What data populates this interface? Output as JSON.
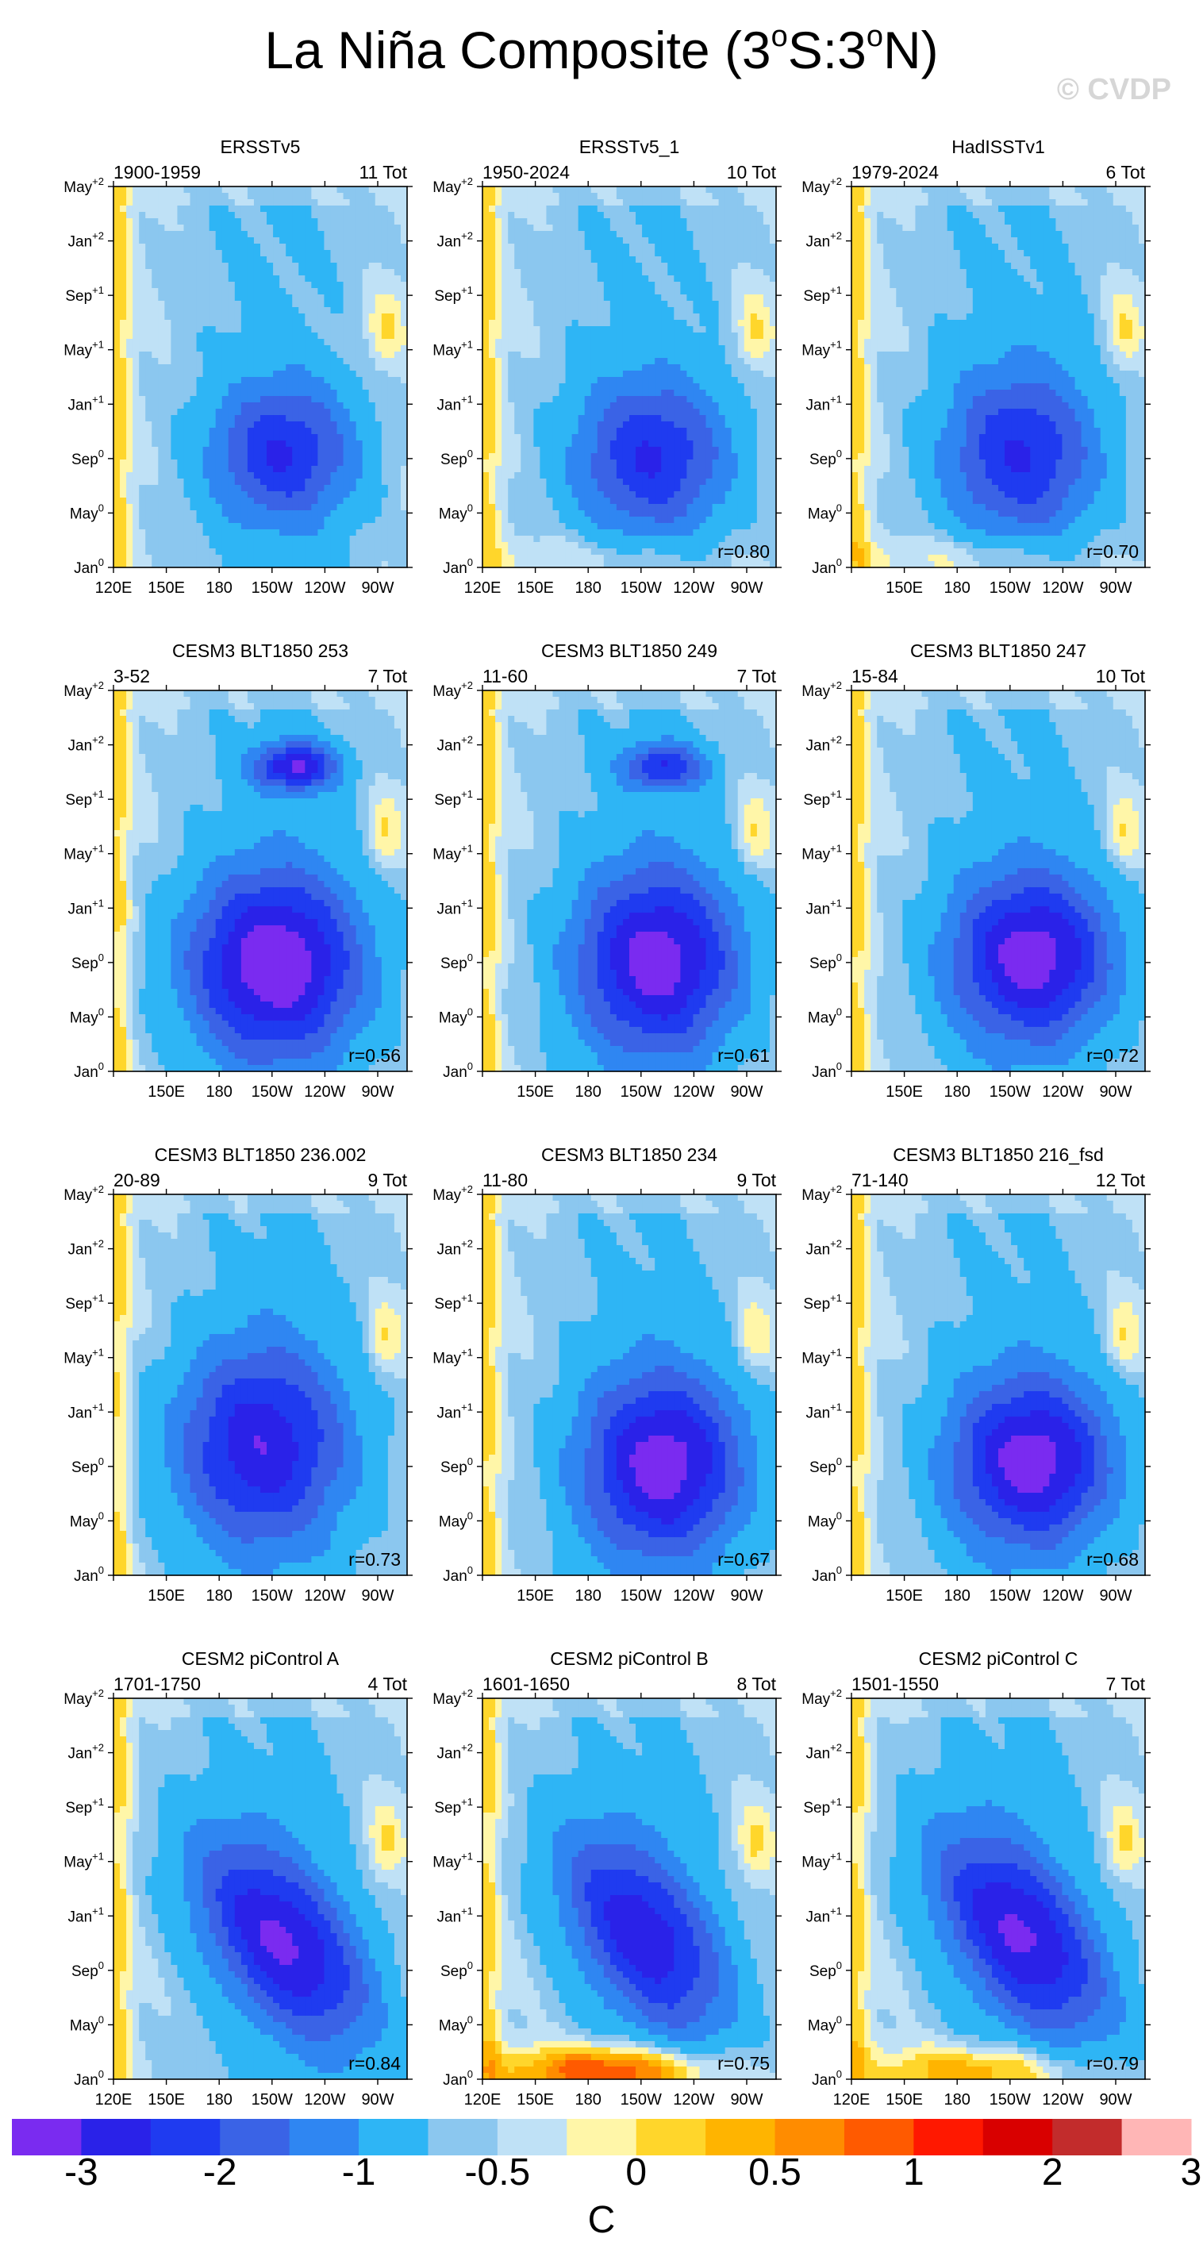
{
  "figure": {
    "title": "La Niña Composite (3",
    "title_deg1": "o",
    "title_mid": "S:3",
    "title_deg2": "o",
    "title_end": "N)",
    "watermark": "© CVDP",
    "colorbar_unit": "C"
  },
  "chart_data": {
    "type": "heatmap",
    "description_units": "SST anomaly composite (C), longitude vs time",
    "x_ticks": [
      "120E",
      "150E",
      "180",
      "150W",
      "120W",
      "90W"
    ],
    "y_ticks": [
      "Jan0",
      "May0",
      "Sep0",
      "Jan+1",
      "May+1",
      "Sep+1",
      "Jan+2",
      "May+2"
    ],
    "y_tick_parts": [
      [
        "Jan",
        "0"
      ],
      [
        "May",
        "0"
      ],
      [
        "Sep",
        "0"
      ],
      [
        "Jan",
        "+1"
      ],
      [
        "May",
        "+1"
      ],
      [
        "Sep",
        "+1"
      ],
      [
        "Jan",
        "+2"
      ],
      [
        "May",
        "+2"
      ]
    ],
    "colorbar": {
      "labels": [
        "-3",
        "-2",
        "-1",
        "-0.5",
        "0",
        "0.5",
        "1",
        "2",
        "3"
      ],
      "colors": [
        "#7a2bf0",
        "#2a22e8",
        "#1f3bf0",
        "#3a63e6",
        "#2f86f2",
        "#2eb5f5",
        "#8bc7ef",
        "#bfe1f6",
        "#fff6a8",
        "#ffd62b",
        "#ffb400",
        "#ff8c00",
        "#ff5a00",
        "#ff1800",
        "#d90000",
        "#c22c2c",
        "#ffb6b6"
      ]
    },
    "panels": [
      {
        "title": "ERSSTv5",
        "period": "1900-1959",
        "count": "11 Tot",
        "r": "",
        "cx": 0.58,
        "cy": 0.3,
        "peak": -2.0,
        "sx": 0.24,
        "sy": 0.18,
        "tilt": 0,
        "warmBand": 0,
        "second": 0,
        "showX0": true
      },
      {
        "title": "ERSSTv5_1",
        "period": "1950-2024",
        "count": "10 Tot",
        "r": "r=0.80",
        "cx": 0.58,
        "cy": 0.29,
        "peak": -2.0,
        "sx": 0.26,
        "sy": 0.2,
        "tilt": 0,
        "warmBand": 0.5,
        "second": 0,
        "showX0": true
      },
      {
        "title": "HadISSTv1",
        "period": "1979-2024",
        "count": "6 Tot",
        "r": "r=0.70",
        "cx": 0.58,
        "cy": 0.3,
        "peak": -2.0,
        "sx": 0.26,
        "sy": 0.22,
        "tilt": 0,
        "warmBand": 0.6,
        "second": 0,
        "showX0": false
      },
      {
        "title": "CESM3 BLT1850 253",
        "period": "3-52",
        "count": "7 Tot",
        "r": "r=0.56",
        "cx": 0.55,
        "cy": 0.28,
        "peak": -3.0,
        "sx": 0.3,
        "sy": 0.24,
        "tilt": 0,
        "warmBand": 0,
        "second": -2.6,
        "showX0": false
      },
      {
        "title": "CESM3 BLT1850 249",
        "period": "11-60",
        "count": "7 Tot",
        "r": "r=0.61",
        "cx": 0.6,
        "cy": 0.29,
        "peak": -2.8,
        "sx": 0.28,
        "sy": 0.24,
        "tilt": 0,
        "warmBand": 0,
        "second": -2.0,
        "showX0": false
      },
      {
        "title": "CESM3 BLT1850 247",
        "period": "15-84",
        "count": "10 Tot",
        "r": "r=0.72",
        "cx": 0.62,
        "cy": 0.3,
        "peak": -2.8,
        "sx": 0.28,
        "sy": 0.22,
        "tilt": 0,
        "warmBand": 0,
        "second": 0,
        "showX0": false
      },
      {
        "title": "CESM3 BLT1850 236.002",
        "period": "20-89",
        "count": "9 Tot",
        "r": "r=0.73",
        "cx": 0.5,
        "cy": 0.34,
        "peak": -2.4,
        "sx": 0.3,
        "sy": 0.26,
        "tilt": 0,
        "warmBand": 0,
        "second": 0,
        "showX0": false
      },
      {
        "title": "CESM3 BLT1850 234",
        "period": "11-80",
        "count": "9 Tot",
        "r": "r=0.67",
        "cx": 0.62,
        "cy": 0.29,
        "peak": -2.8,
        "sx": 0.28,
        "sy": 0.24,
        "tilt": 0,
        "warmBand": 0,
        "second": 0,
        "showX0": false
      },
      {
        "title": "CESM3 BLT1850 216_fsd",
        "period": "71-140",
        "count": "12 Tot",
        "r": "r=0.68",
        "cx": 0.62,
        "cy": 0.3,
        "peak": -2.8,
        "sx": 0.28,
        "sy": 0.22,
        "tilt": 0,
        "warmBand": 0,
        "second": 0,
        "showX0": false
      },
      {
        "title": "CESM2 piControl A",
        "period": "1701-1750",
        "count": "4 Tot",
        "r": "r=0.84",
        "cx": 0.58,
        "cy": 0.36,
        "peak": -2.6,
        "sx": 0.3,
        "sy": 0.22,
        "tilt": 0.5,
        "warmBand": 0,
        "second": 0,
        "showX0": true
      },
      {
        "title": "CESM2 piControl B",
        "period": "1601-1650",
        "count": "8 Tot",
        "r": "r=0.75",
        "cx": 0.55,
        "cy": 0.38,
        "peak": -2.4,
        "sx": 0.28,
        "sy": 0.22,
        "tilt": 0.5,
        "warmBand": 1.8,
        "second": 0,
        "showX0": true
      },
      {
        "title": "CESM2 piControl C",
        "period": "1501-1550",
        "count": "7 Tot",
        "r": "r=0.79",
        "cx": 0.58,
        "cy": 0.38,
        "peak": -2.6,
        "sx": 0.3,
        "sy": 0.22,
        "tilt": 0.5,
        "warmBand": 1.2,
        "second": 0,
        "showX0": true
      }
    ]
  }
}
